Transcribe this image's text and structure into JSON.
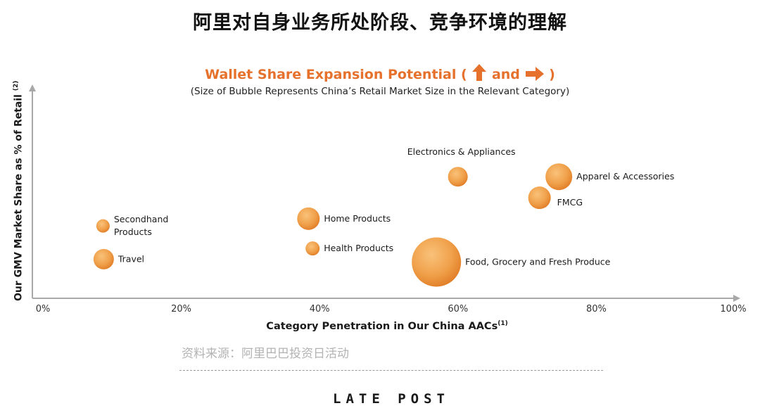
{
  "page": {
    "title": "阿里对自身业务所处阶段、竞争环境的理解",
    "source": "资料来源：阿里巴巴投资日活动",
    "logo": "LATE POST"
  },
  "icons": [
    "up-arrow-icon",
    "right-arrow-icon"
  ],
  "colors": {
    "accent": "#e5712c",
    "bubble_light": "#f7b662",
    "bubble_dark": "#e9852e"
  },
  "chart_data": {
    "type": "scatter",
    "title_prefix": "Wallet Share Expansion Potential (",
    "title_joiner": "and",
    "title_suffix": ")",
    "subtitle": "(Size of Bubble Represents China’s Retail Market Size in the Relevant Category)",
    "xlabel": "Category Penetration in Our China AACs",
    "xlabel_sup": "(1)",
    "ylabel": "Our GMV Market Share as % of Retail",
    "ylabel_sup": "(2)",
    "xlim": [
      0,
      100
    ],
    "ylim": [
      0,
      100
    ],
    "grid": false,
    "x_ticks": [
      {
        "value": 0,
        "label": "0%"
      },
      {
        "value": 20,
        "label": "20%"
      },
      {
        "value": 40,
        "label": "40%"
      },
      {
        "value": 60,
        "label": "60%"
      },
      {
        "value": 80,
        "label": "80%"
      },
      {
        "value": 100,
        "label": "100%"
      }
    ],
    "bubbles": [
      {
        "label": "Electronics & Appliances",
        "x": 60.9,
        "y": 60,
        "size": 14,
        "label_pos": "above"
      },
      {
        "label": "Apparel & Accessories",
        "x": 75.5,
        "y": 60,
        "size": 19,
        "label_pos": "right"
      },
      {
        "label": "FMCG",
        "x": 72.7,
        "y": 49.6,
        "size": 16,
        "label_pos": "right"
      },
      {
        "label": "Secondhand Products",
        "x": 9.6,
        "y": 35.7,
        "size": 9.5,
        "label_pos": "right"
      },
      {
        "label": "Home Products",
        "x": 39.3,
        "y": 39.3,
        "size": 16,
        "label_pos": "right"
      },
      {
        "label": "Health Products",
        "x": 39.9,
        "y": 24.6,
        "size": 10,
        "label_pos": "right"
      },
      {
        "label": "Travel",
        "x": 9.7,
        "y": 19.3,
        "size": 14.5,
        "label_pos": "right"
      },
      {
        "label": "Food, Grocery and Fresh Produce",
        "x": 57.8,
        "y": 17.9,
        "size": 35,
        "label_pos": "right"
      }
    ]
  }
}
